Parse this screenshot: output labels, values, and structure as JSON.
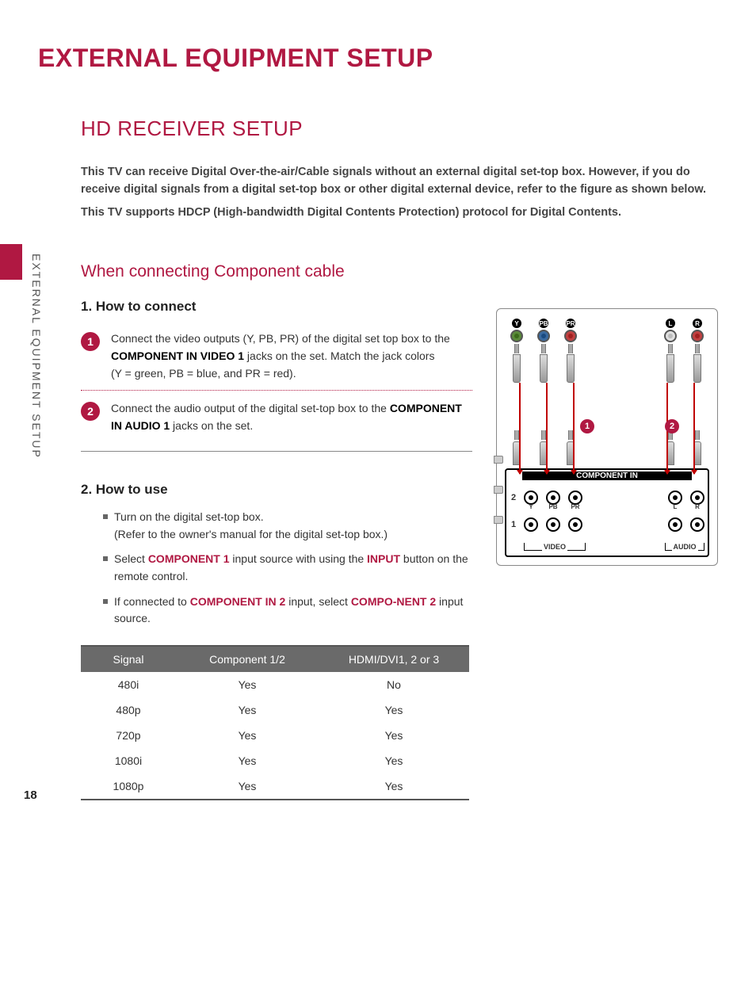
{
  "colors": {
    "accent": "#b01842",
    "text": "#333333",
    "table_header_bg": "#6a6a6a",
    "table_header_fg": "#ffffff",
    "border": "#555555",
    "jack_green": "#5a8a3a",
    "jack_blue": "#3a6aa0",
    "jack_red": "#c04040",
    "jack_white": "#e0e0e0",
    "arrow_red": "#c00000"
  },
  "page_number": "18",
  "side_label": "EXTERNAL EQUIPMENT SETUP",
  "title": "EXTERNAL EQUIPMENT SETUP",
  "subtitle": "HD RECEIVER SETUP",
  "intro_p1": "This TV can receive Digital Over-the-air/Cable signals without an external digital set-top box. However, if you do receive digital signals from a digital set-top box or other digital external device, refer to the figure as shown below.",
  "intro_p2": "This TV supports HDCP (High-bandwidth Digital Contents Protection) protocol for Digital Contents.",
  "section1": "When connecting Component cable",
  "howconnect_h": "1. How to connect",
  "step1_pre": "Connect the video outputs (Y, PB, PR) of the digital set top box to the ",
  "step1_bold": "COMPONENT IN VIDEO 1",
  "step1_post": " jacks on the set. Match the jack colors",
  "step1_line2": "(Y = green, PB = blue, and PR = red).",
  "step2_pre": "Connect the audio output of the digital set-top box to the ",
  "step2_bold": "COMPONENT IN AUDIO 1",
  "step2_post": " jacks on the set.",
  "howuse_h": "2. How to use",
  "use1a": "Turn on the digital set-top box.",
  "use1b": "(Refer to the owner's manual for the digital set-top box.)",
  "use2_pre": "Select ",
  "use2_r1": "COMPONENT 1",
  "use2_mid": " input source with using the ",
  "use2_r2": "INPUT",
  "use2_post": " button on the remote control.",
  "use3_pre": "If connected to ",
  "use3_r1": "COMPONENT IN 2",
  "use3_mid": " input, select  ",
  "use3_r2": "COMPO-NENT 2",
  "use3_post": "  input source.",
  "table": {
    "columns": [
      "Signal",
      "Component 1/2",
      "HDMI/DVI1, 2 or 3"
    ],
    "rows": [
      [
        "480i",
        "Yes",
        "No"
      ],
      [
        "480p",
        "Yes",
        "Yes"
      ],
      [
        "720p",
        "Yes",
        "Yes"
      ],
      [
        "1080i",
        "Yes",
        "Yes"
      ],
      [
        "1080p",
        "Yes",
        "Yes"
      ]
    ]
  },
  "diagram": {
    "top_jacks_video": [
      "Y",
      "PB",
      "PR"
    ],
    "top_jacks_audio": [
      "L",
      "R"
    ],
    "badge1": "1",
    "badge2": "2",
    "panel_title": "COMPONENT IN",
    "row2_sockets": [
      "Y",
      "PB",
      "PR",
      "L",
      "R"
    ],
    "row2_num": "2",
    "row1_num": "1",
    "video_label": "VIDEO",
    "audio_label": "AUDIO"
  }
}
